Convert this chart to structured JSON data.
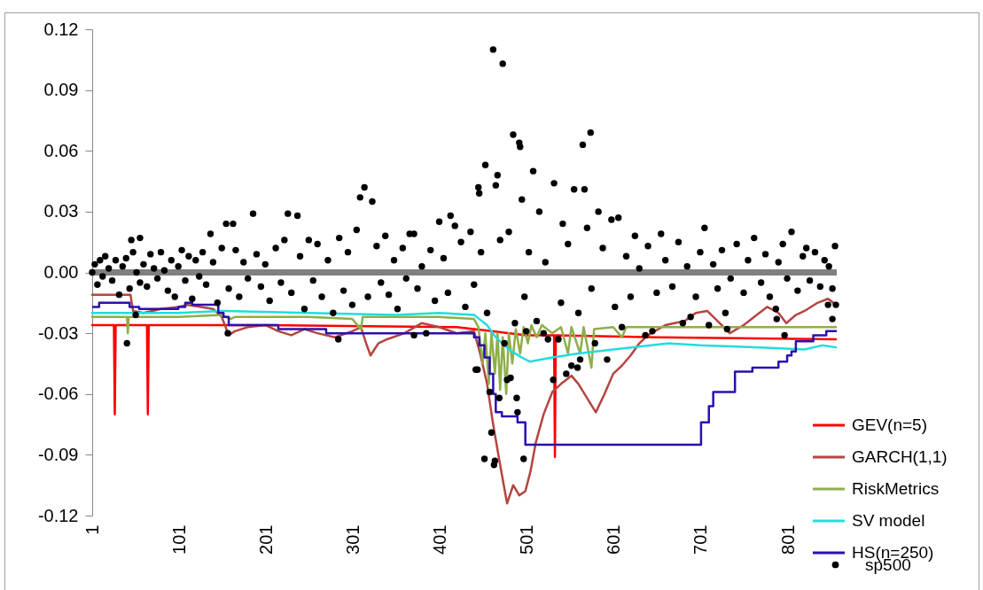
{
  "chart_data": {
    "type": "line",
    "xlim": [
      1,
      857
    ],
    "xticks": [
      1,
      101,
      201,
      301,
      401,
      501,
      601,
      701,
      801
    ],
    "ylim": [
      -0.12,
      0.12
    ],
    "yticks": [
      -0.12,
      -0.09,
      -0.06,
      -0.03,
      {
        "value": 0,
        "label": "0.00"
      },
      0.03,
      0.06,
      0.09,
      0.12
    ],
    "legend": "bottom right",
    "marker": "none",
    "line_style": "solid",
    "ref_lines": [
      {
        "axis": "y",
        "value": 0,
        "color": "#808080"
      }
    ],
    "series": [
      {
        "name": "GEV(n=5)",
        "color": "#ff0000",
        "x": [
          1,
          26,
          27,
          28,
          64,
          65,
          66,
          200,
          420,
          460,
          500,
          532,
          533,
          534,
          650,
          856
        ],
        "values": [
          -0.026,
          -0.026,
          -0.07,
          -0.026,
          -0.026,
          -0.07,
          -0.026,
          -0.026,
          -0.027,
          -0.029,
          -0.031,
          -0.031,
          -0.091,
          -0.031,
          -0.032,
          -0.033
        ]
      },
      {
        "name": "GARCH(1,1)",
        "color": "#b4453f",
        "x": [
          1,
          45,
          48,
          60,
          80,
          100,
          110,
          140,
          150,
          158,
          165,
          180,
          200,
          215,
          230,
          245,
          260,
          280,
          300,
          310,
          316,
          321,
          330,
          340,
          360,
          380,
          400,
          420,
          440,
          447,
          455,
          462,
          470,
          478,
          485,
          492,
          499,
          505,
          511,
          520,
          530,
          540,
          552,
          560,
          570,
          580,
          590,
          600,
          610,
          620,
          630,
          640,
          660,
          682,
          695,
          708,
          720,
          734,
          750,
          765,
          777,
          790,
          799,
          810,
          820,
          835,
          847,
          856
        ],
        "values": [
          -0.011,
          -0.011,
          -0.019,
          -0.02,
          -0.018,
          -0.017,
          -0.016,
          -0.018,
          -0.022,
          -0.031,
          -0.029,
          -0.027,
          -0.026,
          -0.029,
          -0.031,
          -0.028,
          -0.03,
          -0.032,
          -0.029,
          -0.027,
          -0.035,
          -0.041,
          -0.035,
          -0.033,
          -0.03,
          -0.025,
          -0.027,
          -0.03,
          -0.029,
          -0.04,
          -0.055,
          -0.075,
          -0.095,
          -0.114,
          -0.105,
          -0.11,
          -0.108,
          -0.098,
          -0.084,
          -0.07,
          -0.059,
          -0.055,
          -0.051,
          -0.055,
          -0.062,
          -0.069,
          -0.06,
          -0.05,
          -0.046,
          -0.041,
          -0.035,
          -0.031,
          -0.026,
          -0.024,
          -0.02,
          -0.019,
          -0.024,
          -0.03,
          -0.026,
          -0.021,
          -0.017,
          -0.02,
          -0.025,
          -0.021,
          -0.019,
          -0.015,
          -0.013,
          -0.016
        ]
      },
      {
        "name": "RiskMetrics",
        "color": "#8fae4a",
        "x": [
          1,
          41,
          42,
          43,
          100,
          150,
          160,
          165,
          250,
          300,
          310,
          312,
          400,
          440,
          445,
          450,
          453,
          457,
          460,
          464,
          467,
          470,
          473,
          477,
          480,
          484,
          488,
          493,
          497,
          502,
          506,
          512,
          518,
          530,
          540,
          548,
          552,
          562,
          566,
          575,
          578,
          600,
          610,
          615,
          856
        ],
        "values": [
          -0.022,
          -0.022,
          -0.03,
          -0.022,
          -0.022,
          -0.021,
          -0.023,
          -0.022,
          -0.022,
          -0.023,
          -0.028,
          -0.022,
          -0.022,
          -0.023,
          -0.027,
          -0.045,
          -0.03,
          -0.055,
          -0.03,
          -0.05,
          -0.03,
          -0.058,
          -0.032,
          -0.06,
          -0.03,
          -0.045,
          -0.028,
          -0.04,
          -0.027,
          -0.035,
          -0.026,
          -0.032,
          -0.026,
          -0.03,
          -0.027,
          -0.04,
          -0.027,
          -0.04,
          -0.027,
          -0.047,
          -0.028,
          -0.027,
          -0.032,
          -0.027,
          -0.027
        ]
      },
      {
        "name": "SV model",
        "color": "#22dddd",
        "x": [
          1,
          100,
          150,
          250,
          350,
          400,
          440,
          446,
          455,
          465,
          480,
          495,
          504,
          530,
          560,
          600,
          664,
          700,
          770,
          820,
          840,
          856
        ],
        "values": [
          -0.02,
          -0.02,
          -0.019,
          -0.02,
          -0.021,
          -0.02,
          -0.021,
          -0.023,
          -0.026,
          -0.032,
          -0.038,
          -0.042,
          -0.044,
          -0.042,
          -0.04,
          -0.038,
          -0.035,
          -0.036,
          -0.037,
          -0.038,
          -0.036,
          -0.037
        ]
      },
      {
        "name": "HS(n=250)",
        "type": "step",
        "color": "#2a10ad",
        "x": [
          1,
          9,
          44,
          55,
          100,
          108,
          116,
          146,
          152,
          158,
          215,
          270,
          440,
          446,
          452,
          458,
          462,
          465,
          472,
          490,
          499,
          701,
          710,
          715,
          740,
          760,
          790,
          800,
          805,
          810,
          830,
          845,
          857
        ],
        "values": [
          -0.017,
          -0.015,
          -0.017,
          -0.018,
          -0.017,
          -0.015,
          -0.016,
          -0.02,
          -0.022,
          -0.026,
          -0.028,
          -0.03,
          -0.032,
          -0.036,
          -0.042,
          -0.05,
          -0.06,
          -0.069,
          -0.071,
          -0.074,
          -0.085,
          -0.074,
          -0.066,
          -0.059,
          -0.049,
          -0.047,
          -0.044,
          -0.041,
          -0.039,
          -0.034,
          -0.031,
          -0.029,
          -0.029
        ]
      },
      {
        "name": "sp500",
        "type": "scatter",
        "marker": "circle",
        "color": "#000000",
        "x": [
          1,
          4,
          7,
          10,
          13,
          16,
          20,
          24,
          28,
          32,
          36,
          40,
          44,
          48,
          52,
          56,
          60,
          64,
          68,
          72,
          76,
          80,
          84,
          88,
          92,
          96,
          100,
          104,
          108,
          112,
          116,
          120,
          124,
          128,
          132,
          140,
          145,
          150,
          158,
          166,
          170,
          175,
          180,
          190,
          195,
          200,
          205,
          212,
          218,
          222,
          230,
          240,
          245,
          250,
          255,
          260,
          265,
          272,
          278,
          285,
          290,
          295,
          300,
          305,
          318,
          328,
          333,
          338,
          342,
          348,
          352,
          358,
          362,
          366,
          375,
          380,
          390,
          395,
          405,
          410,
          425,
          430,
          436,
          440,
          448,
          455,
          470,
          475,
          480,
          495,
          498,
          503,
          512,
          515,
          522,
          540,
          542,
          548,
          560,
          570,
          575,
          583,
          588,
          598,
          602,
          606,
          615,
          620,
          625,
          630,
          640,
          650,
          655,
          660,
          668,
          675,
          685,
          695,
          700,
          705,
          715,
          720,
          725,
          735,
          742,
          750,
          755,
          762,
          770,
          775,
          780,
          790,
          795,
          800,
          805,
          812,
          818,
          822,
          826,
          832,
          838,
          843,
          848,
          852,
          855,
          462,
          473,
          485,
          492,
          493,
          574,
          565,
          453,
          508,
          532,
          555,
          567,
          467,
          465,
          309,
          314,
          323,
          186,
          226,
          237,
          445,
          446,
          400,
          413,
          418,
          155,
          163,
          371,
          137,
          56,
          46,
          41,
          51,
          157,
          284,
          371,
          385,
          442,
          444,
          458,
          460,
          452,
          463,
          464,
          497,
          490,
          489,
          469,
          478,
          482,
          531,
          546,
          552,
          559,
          562,
          579,
          593,
          537,
          525,
          500,
          487,
          520,
          610,
          637,
          645,
          680,
          689,
          710,
          729,
          731,
          787,
          788,
          797,
          852,
          847,
          856
        ],
        "values": [
          0.0,
          0.004,
          -0.006,
          0.006,
          -0.002,
          0.008,
          0.002,
          -0.004,
          0.006,
          -0.011,
          0.003,
          0.007,
          -0.008,
          0.01,
          0.0,
          -0.005,
          0.004,
          -0.007,
          0.009,
          0.002,
          -0.003,
          0.01,
          0.001,
          -0.009,
          0.006,
          -0.012,
          0.003,
          0.011,
          -0.004,
          0.008,
          -0.013,
          0.006,
          -0.002,
          0.01,
          -0.006,
          0.005,
          -0.015,
          0.012,
          -0.008,
          0.011,
          -0.012,
          0.005,
          -0.003,
          0.009,
          -0.007,
          0.004,
          -0.014,
          0.012,
          -0.005,
          0.016,
          -0.01,
          0.008,
          -0.018,
          0.016,
          -0.004,
          0.014,
          -0.012,
          0.006,
          -0.02,
          0.017,
          -0.009,
          0.01,
          -0.016,
          0.021,
          -0.012,
          0.013,
          -0.005,
          0.018,
          -0.011,
          0.006,
          -0.018,
          0.012,
          -0.003,
          0.019,
          -0.008,
          0.003,
          0.011,
          -0.014,
          0.007,
          -0.01,
          0.015,
          -0.017,
          0.02,
          -0.006,
          0.01,
          -0.02,
          0.016,
          -0.035,
          0.02,
          0.036,
          -0.012,
          0.01,
          -0.024,
          0.03,
          0.005,
          -0.015,
          0.024,
          0.014,
          -0.02,
          0.022,
          -0.008,
          0.03,
          0.012,
          0.026,
          -0.017,
          0.027,
          0.008,
          -0.012,
          0.018,
          0.002,
          0.013,
          -0.01,
          0.019,
          0.006,
          -0.007,
          0.015,
          0.003,
          -0.012,
          0.01,
          0.022,
          0.004,
          -0.008,
          0.011,
          -0.003,
          0.014,
          -0.01,
          0.006,
          0.017,
          -0.005,
          0.009,
          -0.012,
          0.005,
          0.014,
          -0.003,
          0.02,
          -0.009,
          0.008,
          0.012,
          -0.004,
          0.01,
          -0.007,
          0.006,
          0.003,
          -0.008,
          0.013,
          0.11,
          0.103,
          0.068,
          0.064,
          0.062,
          0.069,
          0.063,
          0.053,
          0.05,
          0.044,
          0.041,
          0.041,
          0.048,
          0.043,
          0.037,
          0.042,
          0.035,
          0.029,
          0.029,
          0.028,
          0.042,
          0.039,
          0.025,
          0.028,
          0.023,
          0.024,
          0.024,
          0.019,
          0.019,
          0.017,
          0.016,
          -0.035,
          -0.021,
          -0.03,
          -0.033,
          -0.031,
          -0.03,
          -0.048,
          -0.048,
          -0.059,
          -0.079,
          -0.092,
          -0.095,
          -0.093,
          -0.092,
          -0.069,
          -0.062,
          -0.062,
          -0.053,
          -0.052,
          -0.053,
          -0.05,
          -0.046,
          -0.047,
          -0.043,
          -0.035,
          -0.043,
          -0.033,
          -0.033,
          -0.029,
          -0.025,
          -0.03,
          -0.027,
          -0.031,
          -0.029,
          -0.025,
          -0.022,
          -0.026,
          -0.02,
          -0.028,
          -0.018,
          -0.023,
          -0.031,
          -0.023,
          -0.016,
          -0.016
        ]
      }
    ]
  }
}
